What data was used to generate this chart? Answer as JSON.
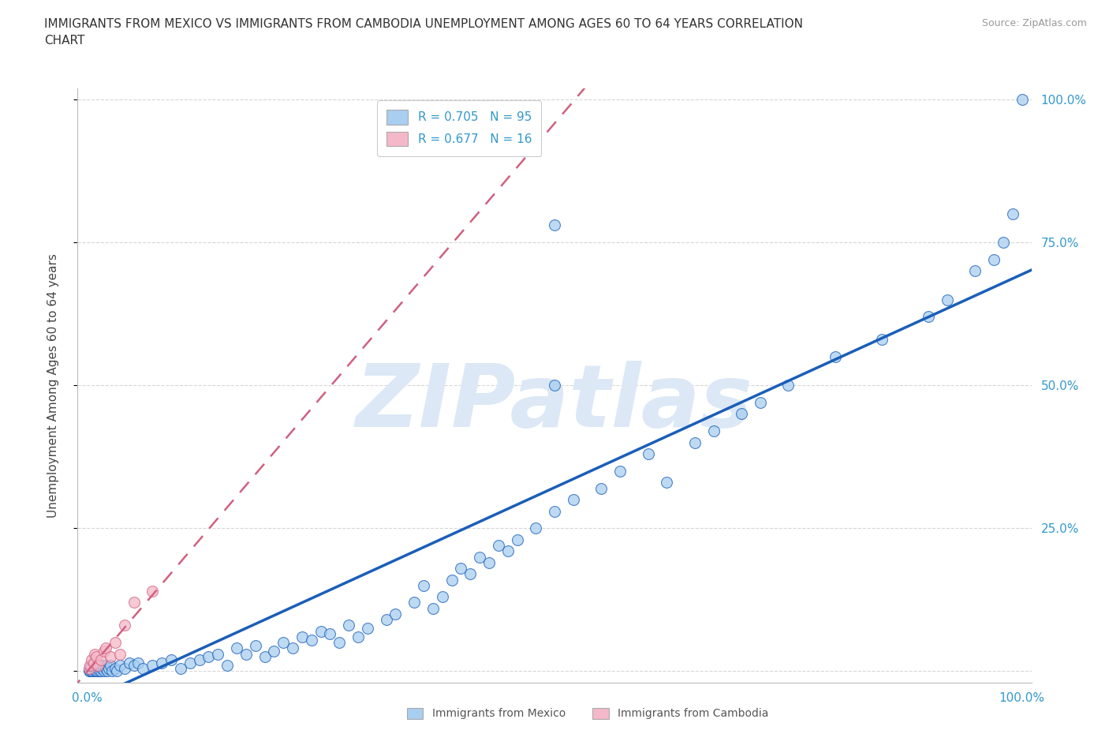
{
  "title": "IMMIGRANTS FROM MEXICO VS IMMIGRANTS FROM CAMBODIA UNEMPLOYMENT AMONG AGES 60 TO 64 YEARS CORRELATION\nCHART",
  "source_text": "Source: ZipAtlas.com",
  "ylabel": "Unemployment Among Ages 60 to 64 years",
  "mexico_R": 0.705,
  "mexico_N": 95,
  "cambodia_R": 0.677,
  "cambodia_N": 16,
  "mexico_color": "#a8cef0",
  "cambodia_color": "#f5b8c8",
  "mexico_line_color": "#1a5eb8",
  "cambodia_line_color": "#d06080",
  "watermark_text": "ZIPatlas",
  "watermark_color": "#dce8f5",
  "background_color": "#ffffff",
  "xlim": [
    0,
    100
  ],
  "ylim": [
    0,
    100
  ],
  "mexico_x": [
    0.2,
    0.3,
    0.4,
    0.5,
    0.5,
    0.6,
    0.7,
    0.8,
    0.8,
    0.9,
    1.0,
    1.0,
    1.1,
    1.2,
    1.3,
    1.4,
    1.5,
    1.6,
    1.7,
    1.8,
    2.0,
    2.1,
    2.2,
    2.3,
    2.5,
    2.7,
    3.0,
    3.2,
    3.5,
    4.0,
    4.5,
    5.0,
    5.5,
    6.0,
    7.0,
    8.0,
    9.0,
    10.0,
    11.0,
    12.0,
    13.0,
    14.0,
    15.0,
    16.0,
    17.0,
    18.0,
    19.0,
    20.0,
    21.0,
    22.0,
    23.0,
    24.0,
    25.0,
    26.0,
    27.0,
    28.0,
    29.0,
    30.0,
    32.0,
    33.0,
    35.0,
    36.0,
    37.0,
    38.0,
    39.0,
    40.0,
    41.0,
    42.0,
    43.0,
    44.0,
    45.0,
    46.0,
    48.0,
    50.0,
    50.0,
    52.0,
    55.0,
    57.0,
    60.0,
    62.0,
    65.0,
    67.0,
    70.0,
    72.0,
    75.0,
    80.0,
    85.0,
    90.0,
    92.0,
    95.0,
    97.0,
    98.0,
    99.0,
    100.0,
    50.0
  ],
  "mexico_y": [
    0.0,
    0.0,
    0.5,
    0.0,
    1.0,
    0.0,
    0.5,
    0.0,
    1.0,
    0.5,
    0.0,
    1.5,
    0.0,
    0.5,
    0.0,
    1.0,
    0.0,
    0.5,
    1.0,
    0.0,
    0.5,
    1.0,
    0.0,
    0.5,
    1.0,
    0.0,
    0.5,
    0.0,
    1.0,
    0.5,
    1.5,
    1.0,
    1.5,
    0.5,
    1.0,
    1.5,
    2.0,
    0.5,
    1.5,
    2.0,
    2.5,
    3.0,
    1.0,
    4.0,
    3.0,
    4.5,
    2.5,
    3.5,
    5.0,
    4.0,
    6.0,
    5.5,
    7.0,
    6.5,
    5.0,
    8.0,
    6.0,
    7.5,
    9.0,
    10.0,
    12.0,
    15.0,
    11.0,
    13.0,
    16.0,
    18.0,
    17.0,
    20.0,
    19.0,
    22.0,
    21.0,
    23.0,
    25.0,
    28.0,
    50.0,
    30.0,
    32.0,
    35.0,
    38.0,
    33.0,
    40.0,
    42.0,
    45.0,
    47.0,
    50.0,
    55.0,
    58.0,
    62.0,
    65.0,
    70.0,
    72.0,
    75.0,
    80.0,
    100.0,
    78.0
  ],
  "cambodia_x": [
    0.2,
    0.3,
    0.5,
    0.7,
    0.8,
    1.0,
    1.2,
    1.5,
    1.8,
    2.0,
    2.5,
    3.0,
    3.5,
    4.0,
    5.0,
    7.0
  ],
  "cambodia_y": [
    0.5,
    1.0,
    2.0,
    1.5,
    3.0,
    2.5,
    1.0,
    2.0,
    3.5,
    4.0,
    2.5,
    5.0,
    3.0,
    8.0,
    12.0,
    14.0
  ]
}
